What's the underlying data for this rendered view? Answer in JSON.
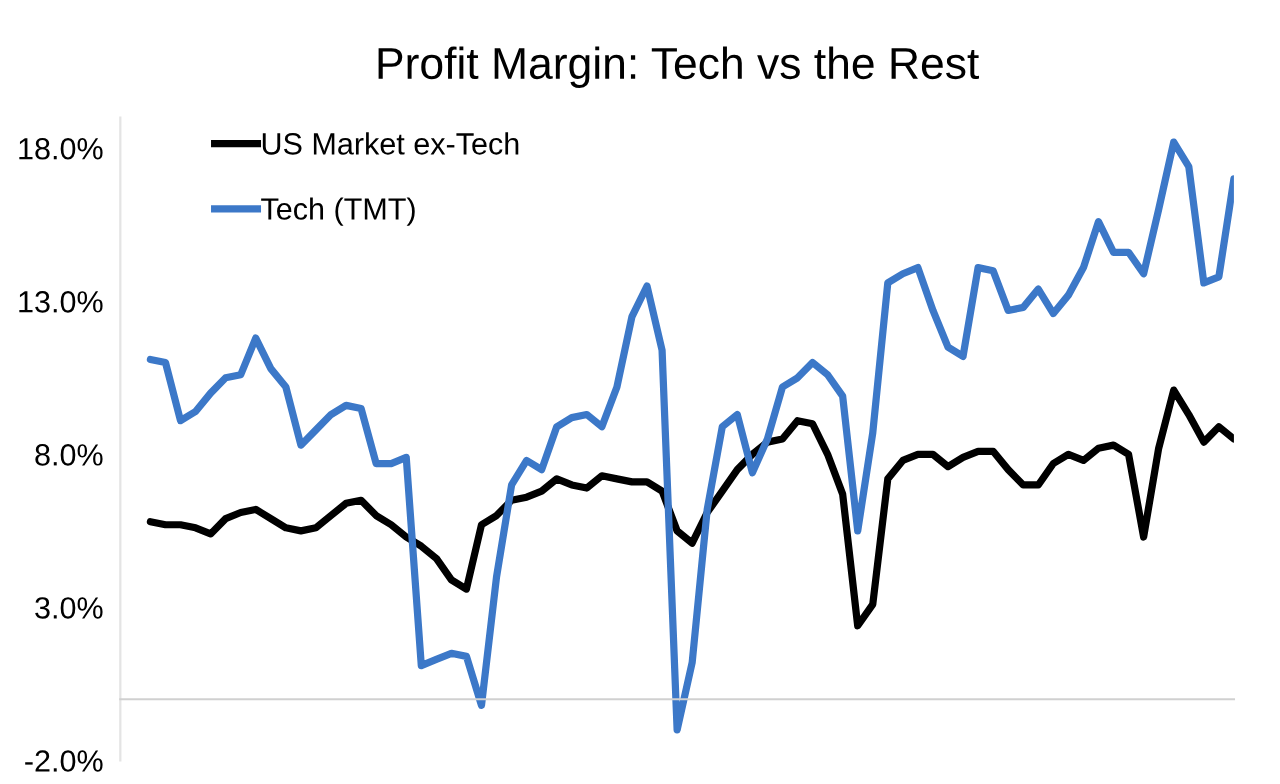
{
  "chart_data": {
    "type": "line",
    "title": "Profit Margin: Tech vs the Rest",
    "categories": [
      null,
      null,
      null,
      null,
      null,
      null,
      null,
      null,
      null,
      null,
      null,
      null,
      null,
      null,
      null,
      null,
      null,
      null,
      null,
      null,
      null,
      null,
      null,
      null,
      null,
      null,
      null,
      null,
      null,
      null,
      null,
      null,
      null,
      null,
      null,
      null,
      null,
      null,
      null,
      null,
      null,
      null,
      null,
      null,
      null,
      null,
      null,
      null,
      null,
      null,
      null,
      null,
      null,
      null,
      null,
      null,
      null,
      null,
      null,
      null,
      null,
      null,
      null,
      null,
      null,
      null,
      null,
      null,
      null,
      null,
      null,
      null,
      null,
      null,
      null
    ],
    "ylim": [
      -2,
      19
    ],
    "yticks": [
      {
        "value": -2,
        "label": "-2.0%"
      },
      {
        "value": 3,
        "label": "3.0%"
      },
      {
        "value": 8,
        "label": "8.0%"
      },
      {
        "value": 13,
        "label": "13.0%"
      },
      {
        "value": 18,
        "label": "18.0%"
      }
    ],
    "tick_labels": "y",
    "grid": false,
    "legend": "top left",
    "marker": "none",
    "line_style": "solid",
    "series": [
      {
        "name": "US Market ex-Tech",
        "color": "#000000",
        "values": [
          null,
          null,
          5.8,
          5.7,
          5.7,
          5.6,
          5.4,
          5.9,
          6.1,
          6.2,
          5.9,
          5.6,
          5.5,
          5.6,
          6.0,
          6.4,
          6.5,
          6.0,
          5.7,
          5.3,
          5.0,
          4.6,
          3.9,
          3.6,
          5.7,
          6.0,
          6.5,
          6.6,
          6.8,
          7.2,
          7.0,
          6.9,
          7.3,
          7.2,
          7.1,
          7.1,
          6.8,
          5.5,
          5.1,
          6.1,
          6.8,
          7.5,
          8.0,
          8.4,
          8.5,
          9.1,
          9.0,
          8.0,
          6.7,
          2.4,
          3.1,
          7.2,
          7.8,
          8.0,
          8.0,
          7.6,
          7.9,
          8.1,
          8.1,
          7.5,
          7.0,
          7.0,
          7.7,
          8.0,
          7.8,
          8.2,
          8.3,
          8.0,
          5.3,
          8.2,
          10.1,
          9.3,
          8.4,
          8.9,
          8.5
        ]
      },
      {
        "name": "Tech (TMT)",
        "color": "#3c78c8",
        "values": [
          null,
          null,
          11.1,
          11.0,
          9.1,
          9.4,
          10.0,
          10.5,
          10.6,
          11.8,
          10.8,
          10.2,
          8.3,
          8.8,
          9.3,
          9.6,
          9.5,
          7.7,
          7.7,
          7.9,
          1.1,
          1.3,
          1.5,
          1.4,
          -0.2,
          4.0,
          7.0,
          7.8,
          7.5,
          8.9,
          9.2,
          9.3,
          8.9,
          10.2,
          12.5,
          13.5,
          11.4,
          -1.0,
          1.2,
          6.2,
          8.9,
          9.3,
          7.4,
          8.5,
          10.2,
          10.5,
          11.0,
          10.6,
          9.9,
          5.5,
          8.7,
          13.6,
          13.9,
          14.1,
          12.7,
          11.5,
          11.2,
          14.1,
          14.0,
          12.7,
          12.8,
          13.4,
          12.6,
          13.2,
          14.1,
          15.6,
          14.6,
          14.6,
          13.9,
          16.0,
          18.2,
          17.4,
          13.6,
          13.8,
          17.0
        ]
      }
    ]
  }
}
